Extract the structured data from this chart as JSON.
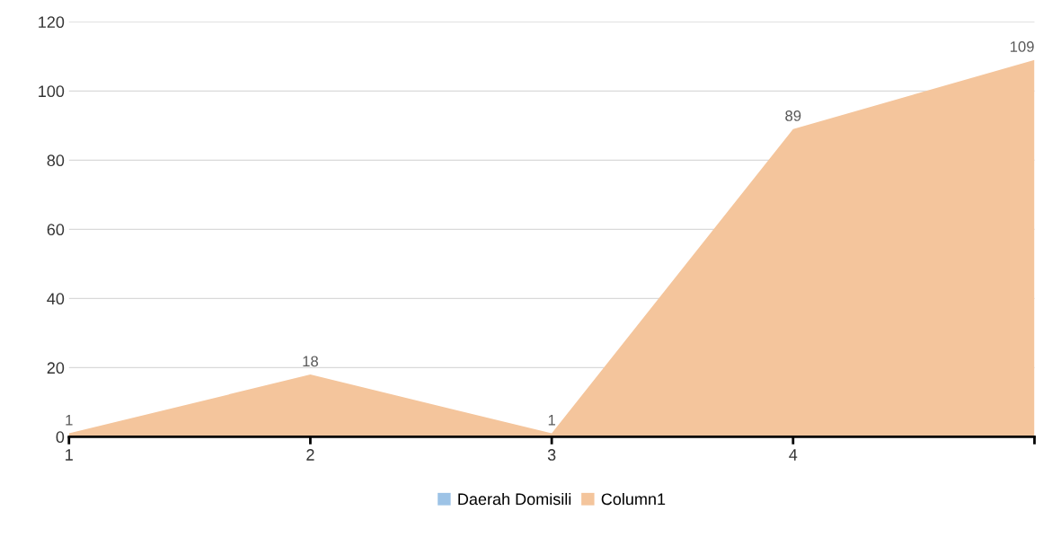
{
  "chart_data": {
    "type": "area",
    "categories": [
      "1",
      "2",
      "3",
      "4",
      null
    ],
    "series": [
      {
        "name": "Daerah Domisili",
        "color": "#9dc3e6",
        "values": [
          null,
          null,
          null,
          null,
          null
        ]
      },
      {
        "name": "Column1",
        "color": "#f4c59c",
        "values": [
          1,
          18,
          1,
          89,
          109
        ]
      }
    ],
    "ylim": [
      0,
      120
    ],
    "yticks": [
      0,
      20,
      40,
      60,
      80,
      100,
      120
    ],
    "grid": "y",
    "legend": "bottom",
    "data_labels": true
  }
}
